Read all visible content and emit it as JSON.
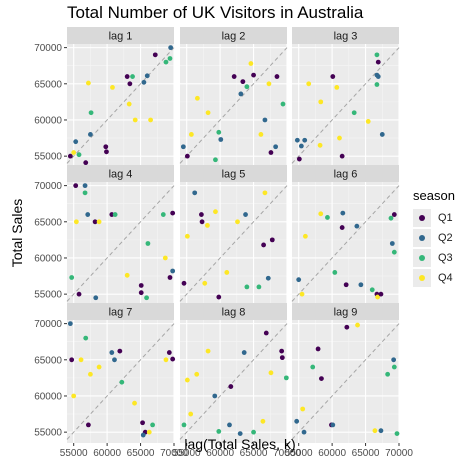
{
  "chart_data": {
    "type": "scatter",
    "title": "Total Number of UK Visitors in Australia",
    "xlabel": "lag(Total Sales, k)",
    "ylabel": "Total Sales",
    "xlim": [
      54000,
      70000
    ],
    "ylim": [
      53500,
      70500
    ],
    "x_ticks": [
      55000,
      60000,
      65000,
      70000
    ],
    "x_tick_labels": [
      "55000",
      "60000",
      "65000",
      "70000"
    ],
    "y_ticks": [
      55000,
      60000,
      65000,
      70000
    ],
    "y_tick_labels": [
      "55000",
      "60000",
      "65000",
      "70000"
    ],
    "grid": true,
    "reference_line": "y = x (dashed)",
    "legend": {
      "title": "season",
      "position": "right",
      "entries": [
        {
          "label": "Q1",
          "color": "#440154"
        },
        {
          "label": "Q2",
          "color": "#31688e"
        },
        {
          "label": "Q3",
          "color": "#35b779"
        },
        {
          "label": "Q4",
          "color": "#fde725"
        }
      ]
    },
    "panels": [
      {
        "label": "lag 1",
        "points": [
          {
            "x": 54500,
            "y": 55000,
            "s": "Q1"
          },
          {
            "x": 55000,
            "y": 55500,
            "s": "Q4"
          },
          {
            "x": 55300,
            "y": 57000,
            "s": "Q2"
          },
          {
            "x": 55800,
            "y": 55200,
            "s": "Q3"
          },
          {
            "x": 56800,
            "y": 54100,
            "s": "Q1"
          },
          {
            "x": 57200,
            "y": 65100,
            "s": "Q4"
          },
          {
            "x": 57600,
            "y": 61000,
            "s": "Q3"
          },
          {
            "x": 57500,
            "y": 58000,
            "s": "Q2"
          },
          {
            "x": 59800,
            "y": 56300,
            "s": "Q1"
          },
          {
            "x": 59900,
            "y": 55600,
            "s": "Q1"
          },
          {
            "x": 60800,
            "y": 64500,
            "s": "Q4"
          },
          {
            "x": 63000,
            "y": 66000,
            "s": "Q1"
          },
          {
            "x": 63400,
            "y": 65000,
            "s": "Q1"
          },
          {
            "x": 63800,
            "y": 66000,
            "s": "Q3"
          },
          {
            "x": 63300,
            "y": 62200,
            "s": "Q4"
          },
          {
            "x": 64200,
            "y": 60000,
            "s": "Q4"
          },
          {
            "x": 65500,
            "y": 65200,
            "s": "Q2"
          },
          {
            "x": 66500,
            "y": 60000,
            "s": "Q4"
          },
          {
            "x": 66000,
            "y": 66100,
            "s": "Q2"
          },
          {
            "x": 67200,
            "y": 69000,
            "s": "Q1"
          },
          {
            "x": 68800,
            "y": 68000,
            "s": "Q3"
          },
          {
            "x": 69500,
            "y": 70000,
            "s": "Q2"
          },
          {
            "x": 69400,
            "y": 68500,
            "s": "Q3"
          }
        ]
      },
      {
        "label": "lag 2",
        "points": [
          {
            "x": 54500,
            "y": 56300,
            "s": "Q2"
          },
          {
            "x": 55100,
            "y": 55000,
            "s": "Q1"
          },
          {
            "x": 55700,
            "y": 58000,
            "s": "Q4"
          },
          {
            "x": 56600,
            "y": 63000,
            "s": "Q4"
          },
          {
            "x": 58200,
            "y": 61000,
            "s": "Q4"
          },
          {
            "x": 59300,
            "y": 54500,
            "s": "Q3"
          },
          {
            "x": 59800,
            "y": 58300,
            "s": "Q3"
          },
          {
            "x": 60100,
            "y": 57300,
            "s": "Q2"
          },
          {
            "x": 62100,
            "y": 66000,
            "s": "Q1"
          },
          {
            "x": 63100,
            "y": 63600,
            "s": "Q2"
          },
          {
            "x": 63400,
            "y": 65300,
            "s": "Q1"
          },
          {
            "x": 64000,
            "y": 64600,
            "s": "Q3"
          },
          {
            "x": 64600,
            "y": 67800,
            "s": "Q4"
          },
          {
            "x": 65000,
            "y": 66200,
            "s": "Q1"
          },
          {
            "x": 66700,
            "y": 60000,
            "s": "Q2"
          },
          {
            "x": 66100,
            "y": 58000,
            "s": "Q4"
          },
          {
            "x": 67300,
            "y": 65000,
            "s": "Q4"
          },
          {
            "x": 68300,
            "y": 56300,
            "s": "Q2"
          },
          {
            "x": 67600,
            "y": 55500,
            "s": "Q1"
          },
          {
            "x": 68500,
            "y": 66000,
            "s": "Q1"
          },
          {
            "x": 69400,
            "y": 62200,
            "s": "Q3"
          }
        ]
      },
      {
        "label": "lag 3",
        "points": [
          {
            "x": 54800,
            "y": 57200,
            "s": "Q2"
          },
          {
            "x": 55100,
            "y": 54600,
            "s": "Q1"
          },
          {
            "x": 55400,
            "y": 56400,
            "s": "Q2"
          },
          {
            "x": 55900,
            "y": 57200,
            "s": "Q2"
          },
          {
            "x": 56500,
            "y": 65000,
            "s": "Q4"
          },
          {
            "x": 58300,
            "y": 62500,
            "s": "Q4"
          },
          {
            "x": 58200,
            "y": 56500,
            "s": "Q4"
          },
          {
            "x": 60100,
            "y": 66000,
            "s": "Q1"
          },
          {
            "x": 60700,
            "y": 64500,
            "s": "Q4"
          },
          {
            "x": 61100,
            "y": 57500,
            "s": "Q4"
          },
          {
            "x": 61500,
            "y": 55000,
            "s": "Q1"
          },
          {
            "x": 63300,
            "y": 61000,
            "s": "Q3"
          },
          {
            "x": 65400,
            "y": 59800,
            "s": "Q4"
          },
          {
            "x": 66700,
            "y": 69000,
            "s": "Q3"
          },
          {
            "x": 66900,
            "y": 66000,
            "s": "Q2"
          },
          {
            "x": 66700,
            "y": 64900,
            "s": "Q3"
          },
          {
            "x": 67500,
            "y": 58000,
            "s": "Q2"
          },
          {
            "x": 66900,
            "y": 68000,
            "s": "Q1"
          },
          {
            "x": 66700,
            "y": 66200,
            "s": "Q2"
          }
        ]
      },
      {
        "label": "lag 4",
        "points": [
          {
            "x": 55300,
            "y": 70000,
            "s": "Q1"
          },
          {
            "x": 55400,
            "y": 65000,
            "s": "Q4"
          },
          {
            "x": 54700,
            "y": 57300,
            "s": "Q3"
          },
          {
            "x": 55800,
            "y": 55000,
            "s": "Q1"
          },
          {
            "x": 56700,
            "y": 70000,
            "s": "Q2"
          },
          {
            "x": 56700,
            "y": 69000,
            "s": "Q3"
          },
          {
            "x": 57100,
            "y": 66000,
            "s": "Q2"
          },
          {
            "x": 58200,
            "y": 65000,
            "s": "Q1"
          },
          {
            "x": 58300,
            "y": 54500,
            "s": "Q2"
          },
          {
            "x": 58800,
            "y": 65000,
            "s": "Q4"
          },
          {
            "x": 60700,
            "y": 66000,
            "s": "Q1"
          },
          {
            "x": 61200,
            "y": 66000,
            "s": "Q3"
          },
          {
            "x": 63000,
            "y": 57600,
            "s": "Q4"
          },
          {
            "x": 65100,
            "y": 56200,
            "s": "Q1"
          },
          {
            "x": 65100,
            "y": 55200,
            "s": "Q1"
          },
          {
            "x": 65900,
            "y": 54500,
            "s": "Q3"
          },
          {
            "x": 66100,
            "y": 62000,
            "s": "Q3"
          },
          {
            "x": 68400,
            "y": 66000,
            "s": "Q3"
          },
          {
            "x": 68700,
            "y": 60000,
            "s": "Q4"
          },
          {
            "x": 69400,
            "y": 57300,
            "s": "Q1"
          },
          {
            "x": 69800,
            "y": 66200,
            "s": "Q1"
          },
          {
            "x": 69800,
            "y": 58200,
            "s": "Q2"
          }
        ]
      },
      {
        "label": "lag 5",
        "points": [
          {
            "x": 54600,
            "y": 56500,
            "s": "Q1"
          },
          {
            "x": 55100,
            "y": 63000,
            "s": "Q4"
          },
          {
            "x": 56200,
            "y": 69000,
            "s": "Q2"
          },
          {
            "x": 57200,
            "y": 66000,
            "s": "Q1"
          },
          {
            "x": 57300,
            "y": 65000,
            "s": "Q1"
          },
          {
            "x": 57700,
            "y": 56500,
            "s": "Q4"
          },
          {
            "x": 58100,
            "y": 64500,
            "s": "Q4"
          },
          {
            "x": 59300,
            "y": 66400,
            "s": "Q4"
          },
          {
            "x": 59800,
            "y": 54600,
            "s": "Q1"
          },
          {
            "x": 61000,
            "y": 58000,
            "s": "Q4"
          },
          {
            "x": 62600,
            "y": 65000,
            "s": "Q4"
          },
          {
            "x": 63800,
            "y": 66000,
            "s": "Q2"
          },
          {
            "x": 64000,
            "y": 56000,
            "s": "Q3"
          },
          {
            "x": 65800,
            "y": 56000,
            "s": "Q3"
          },
          {
            "x": 66500,
            "y": 61800,
            "s": "Q1"
          },
          {
            "x": 66700,
            "y": 69000,
            "s": "Q4"
          },
          {
            "x": 67200,
            "y": 57200,
            "s": "Q2"
          },
          {
            "x": 67800,
            "y": 62500,
            "s": "Q1"
          }
        ]
      },
      {
        "label": "lag 6",
        "points": [
          {
            "x": 55000,
            "y": 57000,
            "s": "Q2"
          },
          {
            "x": 55500,
            "y": 55000,
            "s": "Q4"
          },
          {
            "x": 56000,
            "y": 63000,
            "s": "Q4"
          },
          {
            "x": 58300,
            "y": 66100,
            "s": "Q4"
          },
          {
            "x": 59300,
            "y": 65600,
            "s": "Q3"
          },
          {
            "x": 60400,
            "y": 58000,
            "s": "Q3"
          },
          {
            "x": 61600,
            "y": 66200,
            "s": "Q2"
          },
          {
            "x": 61500,
            "y": 64200,
            "s": "Q1"
          },
          {
            "x": 62100,
            "y": 56300,
            "s": "Q1"
          },
          {
            "x": 63700,
            "y": 64400,
            "s": "Q2"
          },
          {
            "x": 64300,
            "y": 56300,
            "s": "Q2"
          },
          {
            "x": 66000,
            "y": 55600,
            "s": "Q3"
          },
          {
            "x": 66700,
            "y": 55000,
            "s": "Q1"
          },
          {
            "x": 66800,
            "y": 54600,
            "s": "Q4"
          },
          {
            "x": 67300,
            "y": 55000,
            "s": "Q1"
          },
          {
            "x": 68800,
            "y": 65500,
            "s": "Q3"
          },
          {
            "x": 69300,
            "y": 66000,
            "s": "Q1"
          },
          {
            "x": 69300,
            "y": 60800,
            "s": "Q3"
          },
          {
            "x": 69000,
            "y": 62000,
            "s": "Q2"
          }
        ]
      },
      {
        "label": "lag 7",
        "points": [
          {
            "x": 54500,
            "y": 70000,
            "s": "Q2"
          },
          {
            "x": 54700,
            "y": 65000,
            "s": "Q1"
          },
          {
            "x": 55000,
            "y": 60000,
            "s": "Q4"
          },
          {
            "x": 56100,
            "y": 65000,
            "s": "Q4"
          },
          {
            "x": 56800,
            "y": 68000,
            "s": "Q3"
          },
          {
            "x": 57200,
            "y": 56000,
            "s": "Q1"
          },
          {
            "x": 57500,
            "y": 63000,
            "s": "Q4"
          },
          {
            "x": 58800,
            "y": 64000,
            "s": "Q4"
          },
          {
            "x": 60700,
            "y": 66000,
            "s": "Q2"
          },
          {
            "x": 61100,
            "y": 65000,
            "s": "Q2"
          },
          {
            "x": 61900,
            "y": 66200,
            "s": "Q1"
          },
          {
            "x": 62200,
            "y": 61900,
            "s": "Q3"
          },
          {
            "x": 64100,
            "y": 59000,
            "s": "Q4"
          },
          {
            "x": 65300,
            "y": 56300,
            "s": "Q1"
          },
          {
            "x": 65700,
            "y": 55000,
            "s": "Q1"
          },
          {
            "x": 65400,
            "y": 54600,
            "s": "Q2"
          },
          {
            "x": 66300,
            "y": 55000,
            "s": "Q4"
          },
          {
            "x": 66800,
            "y": 56000,
            "s": "Q3"
          },
          {
            "x": 68800,
            "y": 65000,
            "s": "Q4"
          },
          {
            "x": 69300,
            "y": 66000,
            "s": "Q1"
          },
          {
            "x": 69800,
            "y": 65100,
            "s": "Q1"
          }
        ]
      },
      {
        "label": "lag 8",
        "points": [
          {
            "x": 54600,
            "y": 56000,
            "s": "Q3"
          },
          {
            "x": 55100,
            "y": 62200,
            "s": "Q4"
          },
          {
            "x": 55600,
            "y": 57500,
            "s": "Q4"
          },
          {
            "x": 56500,
            "y": 63000,
            "s": "Q4"
          },
          {
            "x": 58200,
            "y": 66200,
            "s": "Q4"
          },
          {
            "x": 59200,
            "y": 60000,
            "s": "Q2"
          },
          {
            "x": 59800,
            "y": 55100,
            "s": "Q3"
          },
          {
            "x": 61400,
            "y": 56000,
            "s": "Q2"
          },
          {
            "x": 61600,
            "y": 61300,
            "s": "Q1"
          },
          {
            "x": 63000,
            "y": 54800,
            "s": "Q2"
          },
          {
            "x": 63600,
            "y": 66000,
            "s": "Q2"
          },
          {
            "x": 65000,
            "y": 55000,
            "s": "Q3"
          },
          {
            "x": 66400,
            "y": 56500,
            "s": "Q4"
          },
          {
            "x": 66900,
            "y": 68700,
            "s": "Q1"
          },
          {
            "x": 67600,
            "y": 63200,
            "s": "Q4"
          },
          {
            "x": 69200,
            "y": 66200,
            "s": "Q1"
          },
          {
            "x": 69300,
            "y": 65300,
            "s": "Q1"
          },
          {
            "x": 69900,
            "y": 62500,
            "s": "Q3"
          }
        ]
      },
      {
        "label": "lag 9",
        "points": [
          {
            "x": 54700,
            "y": 56500,
            "s": "Q2"
          },
          {
            "x": 55600,
            "y": 58200,
            "s": "Q4"
          },
          {
            "x": 55800,
            "y": 55000,
            "s": "Q2"
          },
          {
            "x": 57100,
            "y": 64000,
            "s": "Q3"
          },
          {
            "x": 57900,
            "y": 66500,
            "s": "Q1"
          },
          {
            "x": 58400,
            "y": 62400,
            "s": "Q1"
          },
          {
            "x": 59900,
            "y": 56000,
            "s": "Q1"
          },
          {
            "x": 60100,
            "y": 56000,
            "s": "Q2"
          },
          {
            "x": 62200,
            "y": 69500,
            "s": "Q1"
          },
          {
            "x": 63800,
            "y": 69800,
            "s": "Q4"
          },
          {
            "x": 66400,
            "y": 55200,
            "s": "Q4"
          },
          {
            "x": 67300,
            "y": 55200,
            "s": "Q2"
          },
          {
            "x": 68300,
            "y": 63000,
            "s": "Q3"
          },
          {
            "x": 69200,
            "y": 65000,
            "s": "Q2"
          },
          {
            "x": 69300,
            "y": 64000,
            "s": "Q3"
          },
          {
            "x": 69700,
            "y": 54800,
            "s": "Q3"
          }
        ]
      }
    ]
  }
}
